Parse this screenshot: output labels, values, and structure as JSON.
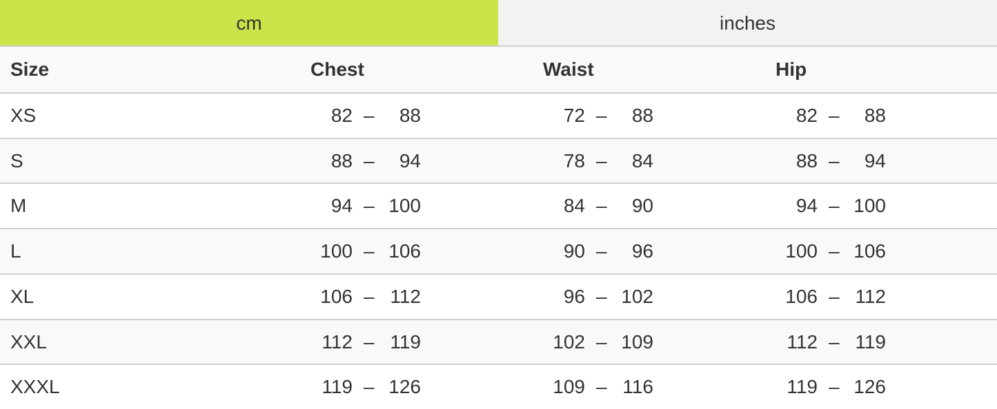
{
  "tabs": [
    {
      "label": "cm",
      "active": true
    },
    {
      "label": "inches",
      "active": false
    }
  ],
  "colors": {
    "active_tab": "#cae349",
    "inactive_tab": "#f2f2f2"
  },
  "table": {
    "headers": [
      "Size",
      "Chest",
      "Waist",
      "Hip"
    ],
    "separator": "–",
    "rows": [
      {
        "size": "XS",
        "chest": [
          "82",
          "88"
        ],
        "waist": [
          "72",
          "88"
        ],
        "hip": [
          "82",
          "88"
        ]
      },
      {
        "size": "S",
        "chest": [
          "88",
          "94"
        ],
        "waist": [
          "78",
          "84"
        ],
        "hip": [
          "88",
          "94"
        ]
      },
      {
        "size": "M",
        "chest": [
          "94",
          "100"
        ],
        "waist": [
          "84",
          "90"
        ],
        "hip": [
          "94",
          "100"
        ]
      },
      {
        "size": "L",
        "chest": [
          "100",
          "106"
        ],
        "waist": [
          "90",
          "96"
        ],
        "hip": [
          "100",
          "106"
        ]
      },
      {
        "size": "XL",
        "chest": [
          "106",
          "112"
        ],
        "waist": [
          "96",
          "102"
        ],
        "hip": [
          "106",
          "112"
        ]
      },
      {
        "size": "XXL",
        "chest": [
          "112",
          "119"
        ],
        "waist": [
          "102",
          "109"
        ],
        "hip": [
          "112",
          "119"
        ]
      },
      {
        "size": "XXXL",
        "chest": [
          "119",
          "126"
        ],
        "waist": [
          "109",
          "116"
        ],
        "hip": [
          "119",
          "126"
        ]
      }
    ]
  }
}
